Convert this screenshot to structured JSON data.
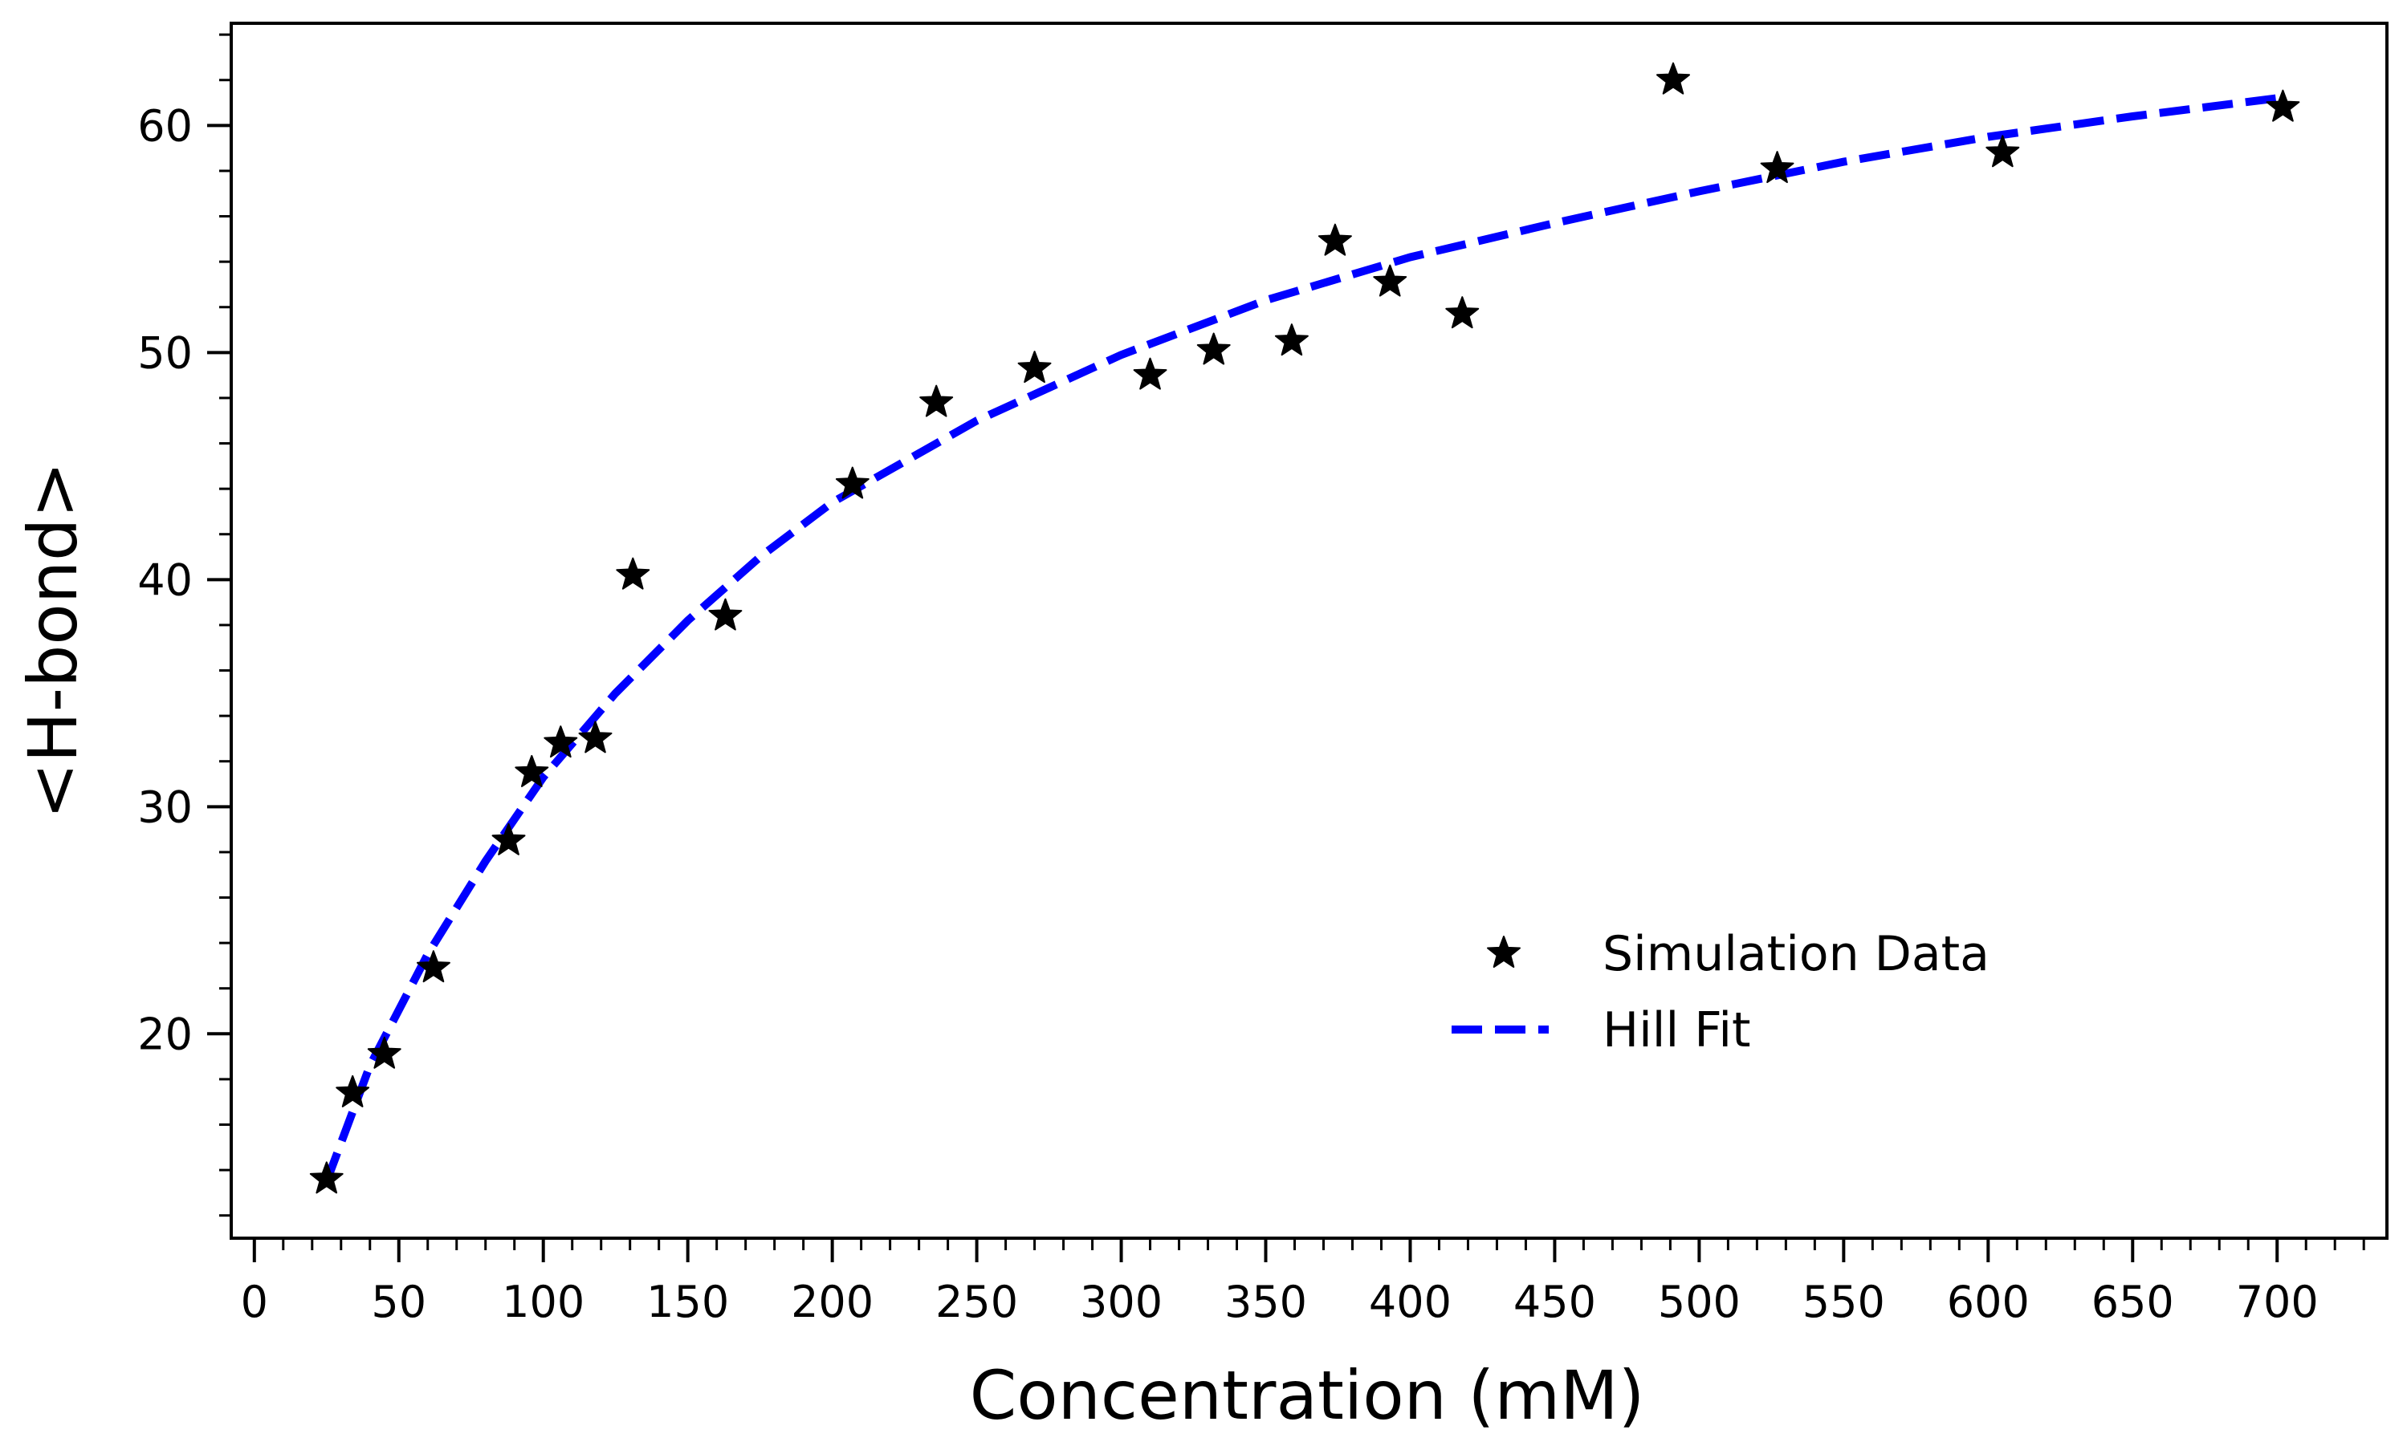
{
  "chart_data": {
    "type": "scatter",
    "title": "",
    "xlabel": "Concentration (mM)",
    "ylabel": "<H-bond>",
    "xlim": [
      -8,
      738
    ],
    "ylim": [
      11,
      64.5
    ],
    "xticks": [
      0,
      50,
      100,
      150,
      200,
      250,
      300,
      350,
      400,
      450,
      500,
      550,
      600,
      650,
      700
    ],
    "yticks": [
      20,
      30,
      40,
      50,
      60
    ],
    "x_minor_step": 10,
    "y_minor_step": 2,
    "grid": false,
    "legend_position": "center-right",
    "series": [
      {
        "name": "Simulation Data",
        "kind": "scatter",
        "marker": "star",
        "color": "#000000",
        "points": [
          {
            "x": 25,
            "y": 13.6
          },
          {
            "x": 34,
            "y": 17.4
          },
          {
            "x": 45,
            "y": 19.1
          },
          {
            "x": 62,
            "y": 22.9
          },
          {
            "x": 88,
            "y": 28.5
          },
          {
            "x": 96,
            "y": 31.5
          },
          {
            "x": 106,
            "y": 32.8
          },
          {
            "x": 118,
            "y": 33.0
          },
          {
            "x": 131,
            "y": 40.2
          },
          {
            "x": 163,
            "y": 38.4
          },
          {
            "x": 207,
            "y": 44.2
          },
          {
            "x": 236,
            "y": 47.8
          },
          {
            "x": 270,
            "y": 49.3
          },
          {
            "x": 310,
            "y": 49.0
          },
          {
            "x": 332,
            "y": 50.1
          },
          {
            "x": 359,
            "y": 50.5
          },
          {
            "x": 374,
            "y": 54.9
          },
          {
            "x": 393,
            "y": 53.1
          },
          {
            "x": 418,
            "y": 51.7
          },
          {
            "x": 491,
            "y": 62.0
          },
          {
            "x": 527,
            "y": 58.1
          },
          {
            "x": 605,
            "y": 58.8
          },
          {
            "x": 702,
            "y": 60.8
          }
        ]
      },
      {
        "name": "Hill Fit",
        "kind": "line",
        "style": "dashed",
        "color": "#0000ff",
        "points": [
          {
            "x": 25,
            "y": 13.5
          },
          {
            "x": 40,
            "y": 18.6
          },
          {
            "x": 60,
            "y": 23.5
          },
          {
            "x": 80,
            "y": 27.6
          },
          {
            "x": 100,
            "y": 31.3
          },
          {
            "x": 125,
            "y": 35.0
          },
          {
            "x": 150,
            "y": 38.2
          },
          {
            "x": 175,
            "y": 41.0
          },
          {
            "x": 200,
            "y": 43.4
          },
          {
            "x": 250,
            "y": 47.0
          },
          {
            "x": 300,
            "y": 49.9
          },
          {
            "x": 350,
            "y": 52.3
          },
          {
            "x": 400,
            "y": 54.2
          },
          {
            "x": 450,
            "y": 55.7
          },
          {
            "x": 500,
            "y": 57.1
          },
          {
            "x": 550,
            "y": 58.4
          },
          {
            "x": 600,
            "y": 59.5
          },
          {
            "x": 650,
            "y": 60.4
          },
          {
            "x": 700,
            "y": 61.2
          }
        ]
      }
    ]
  }
}
